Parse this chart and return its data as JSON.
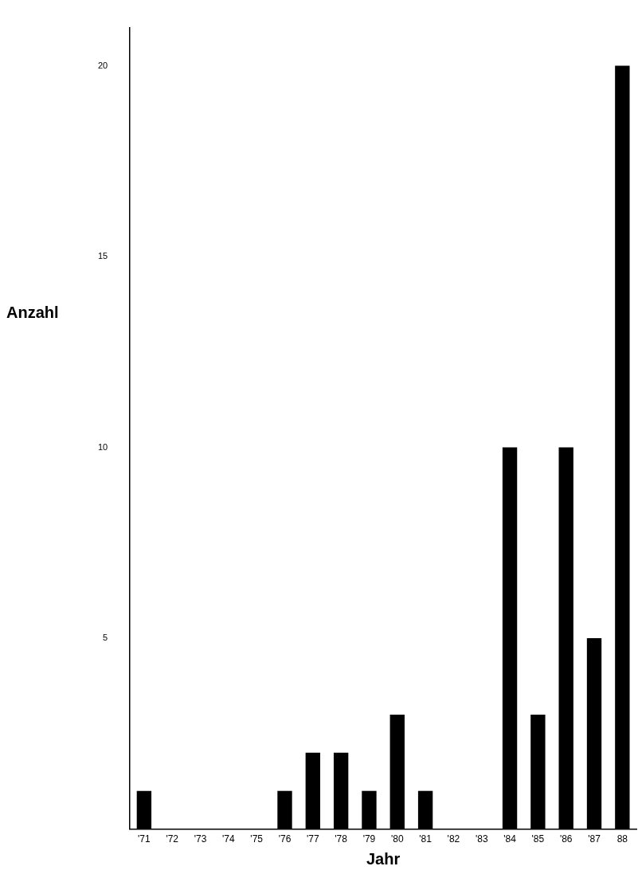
{
  "chart_data": {
    "type": "bar",
    "xlabel": "Jahr",
    "ylabel": "Anzahl",
    "categories": [
      "'71",
      "'72",
      "'73",
      "'74",
      "'75",
      "'76",
      "'77",
      "'78",
      "'79",
      "'80",
      "'81",
      "'82",
      "'83",
      "'84",
      "'85",
      "'86",
      "'87",
      "88"
    ],
    "values": [
      1,
      0,
      0,
      0,
      0,
      1,
      2,
      2,
      1,
      3,
      1,
      0,
      0,
      10,
      3,
      10,
      5,
      20
    ],
    "color": "#000000",
    "ylim": [
      0,
      21
    ],
    "yticks": [
      5,
      10,
      15,
      20
    ],
    "grid": false,
    "legend": false
  }
}
